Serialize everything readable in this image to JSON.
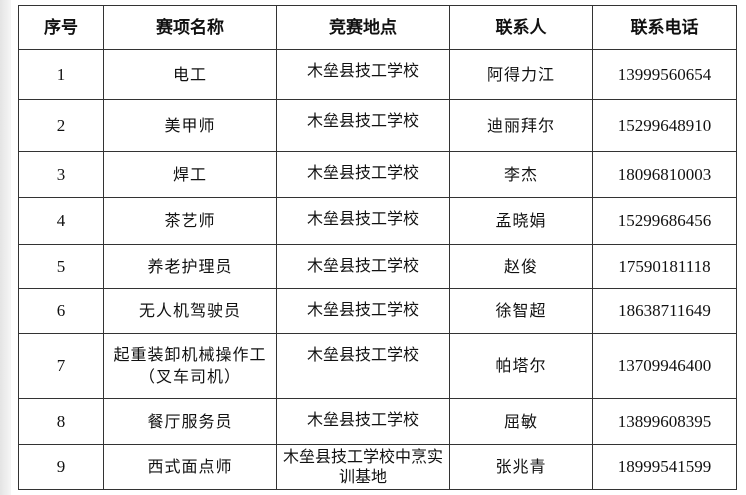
{
  "table": {
    "headers": [
      "序号",
      "赛项名称",
      "竞赛地点",
      "联系人",
      "联系电话"
    ],
    "rows": [
      {
        "no": "1",
        "event": "电工",
        "location": "木垒县技工学校",
        "contact": "阿得力江",
        "phone": "13999560654"
      },
      {
        "no": "2",
        "event": "美甲师",
        "location": "木垒县技工学校",
        "contact": "迪丽拜尔",
        "phone": "15299648910"
      },
      {
        "no": "3",
        "event": "焊工",
        "location": "木垒县技工学校",
        "contact": "李杰",
        "phone": "18096810003"
      },
      {
        "no": "4",
        "event": "茶艺师",
        "location": "木垒县技工学校",
        "contact": "孟晓娟",
        "phone": "15299686456"
      },
      {
        "no": "5",
        "event": "养老护理员",
        "location": "木垒县技工学校",
        "contact": "赵俊",
        "phone": "17590181118"
      },
      {
        "no": "6",
        "event": "无人机驾驶员",
        "location": "木垒县技工学校",
        "contact": "徐智超",
        "phone": "18638711649"
      },
      {
        "no": "7",
        "event": "起重装卸机械操作工（叉车司机）",
        "location": "木垒县技工学校",
        "contact": "帕塔尔",
        "phone": "13709946400"
      },
      {
        "no": "8",
        "event": "餐厅服务员",
        "location": "木垒县技工学校",
        "contact": "屈敏",
        "phone": "13899608395"
      },
      {
        "no": "9",
        "event": "西式面点师",
        "location": "木垒县技工学校中烹实训基地",
        "contact": "张兆青",
        "phone": "18999541599"
      }
    ]
  }
}
